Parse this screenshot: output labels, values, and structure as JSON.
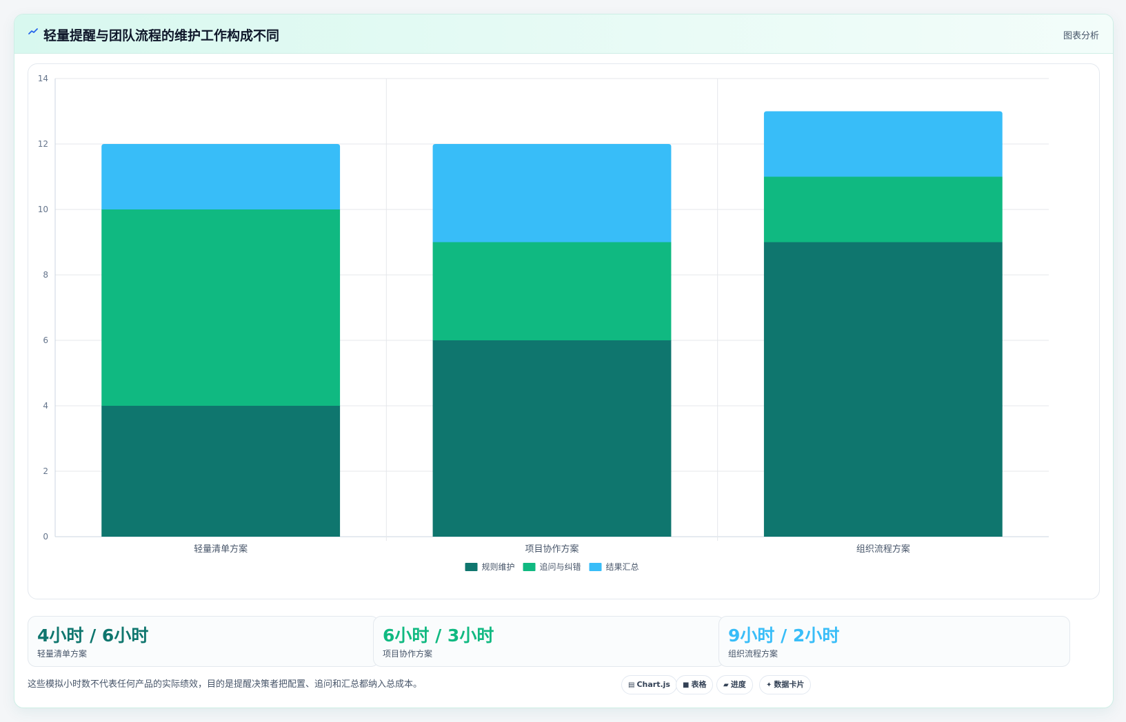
{
  "header": {
    "title": "轻量提醒与团队流程的维护工作构成不同",
    "tag": "图表分析"
  },
  "colors": {
    "series1": "#0f766e",
    "series2": "#10b981",
    "series3": "#38bdf8"
  },
  "chart_data": {
    "type": "bar",
    "stacked": true,
    "categories": [
      "轻量清单方案",
      "项目协作方案",
      "组织流程方案"
    ],
    "series": [
      {
        "name": "规则维护",
        "values": [
          4,
          6,
          9
        ],
        "color": "#0f766e"
      },
      {
        "name": "追问与纠错",
        "values": [
          6,
          3,
          2
        ],
        "color": "#10b981"
      },
      {
        "name": "结果汇总",
        "values": [
          2,
          3,
          2
        ],
        "color": "#38bdf8"
      }
    ],
    "ylim": [
      0,
      14
    ],
    "yticks": [
      0,
      2,
      4,
      6,
      8,
      10,
      12,
      14
    ],
    "grid": true,
    "legend_position": "bottom"
  },
  "stats": [
    {
      "value": "4小时 / 6小时",
      "label": "轻量清单方案",
      "color": "#0f766e"
    },
    {
      "value": "6小时 / 3小时",
      "label": "项目协作方案",
      "color": "#10b981"
    },
    {
      "value": "9小时 / 2小时",
      "label": "组织流程方案",
      "color": "#38bdf8"
    }
  ],
  "note": "这些模拟小时数不代表任何产品的实际绩效，目的是提醒决策者把配置、追问和汇总都纳入总成本。",
  "chips": [
    {
      "icon": "▤",
      "label": "Chart.js",
      "icon_name": "chart-icon"
    },
    {
      "icon": "■",
      "label": "表格",
      "icon_name": "table-icon"
    },
    {
      "icon": "▰",
      "label": "进度",
      "icon_name": "progress-icon"
    },
    {
      "icon": "✦",
      "label": "数据卡片",
      "icon_name": "card-icon"
    }
  ]
}
